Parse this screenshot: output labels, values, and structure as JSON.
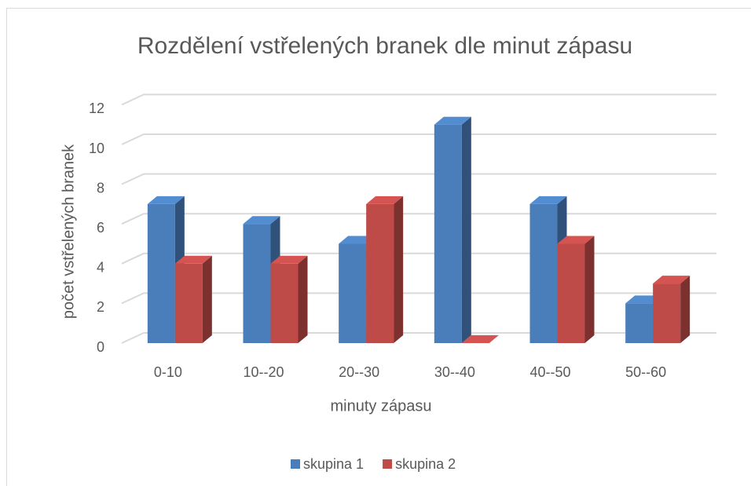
{
  "chart_data": {
    "type": "bar3d",
    "title": "Rozdělení vstřelených branek dle minut zápasu",
    "x_label": "minuty zápasu",
    "y_label": "počet vstřelených branek",
    "categories": [
      "0-10",
      "10--20",
      "20--30",
      "30--40",
      "40--50",
      "50--60"
    ],
    "series": [
      {
        "name": "skupina 1",
        "color": "#4a7ebb",
        "values": [
          7,
          6,
          5,
          11,
          7,
          2
        ]
      },
      {
        "name": "skupina 2",
        "color": "#be4b48",
        "values": [
          4,
          4,
          7,
          0,
          5,
          3
        ]
      }
    ],
    "ylim": [
      0,
      12
    ],
    "yticks": [
      0,
      2,
      4,
      6,
      8,
      10,
      12
    ],
    "grid": true,
    "legend": "bottom"
  }
}
